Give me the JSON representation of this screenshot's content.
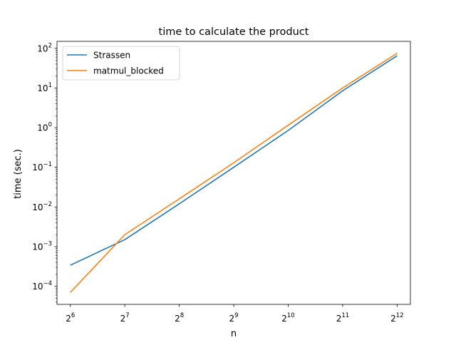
{
  "chart_data": {
    "type": "line",
    "title": "time to calculate the product",
    "xlabel": "n",
    "ylabel": "time (sec.)",
    "x_scale": "log2",
    "y_scale": "log10",
    "x": [
      64,
      128,
      256,
      512,
      1024,
      2048,
      4096
    ],
    "xticks": [
      {
        "value": 64,
        "base": "2",
        "exp": "6"
      },
      {
        "value": 128,
        "base": "2",
        "exp": "7"
      },
      {
        "value": 256,
        "base": "2",
        "exp": "8"
      },
      {
        "value": 512,
        "base": "2",
        "exp": "9"
      },
      {
        "value": 1024,
        "base": "2",
        "exp": "10"
      },
      {
        "value": 2048,
        "base": "2",
        "exp": "11"
      },
      {
        "value": 4096,
        "base": "2",
        "exp": "12"
      }
    ],
    "yticks": [
      {
        "value": 0.0001,
        "base": "10",
        "exp": "−4"
      },
      {
        "value": 0.001,
        "base": "10",
        "exp": "−3"
      },
      {
        "value": 0.01,
        "base": "10",
        "exp": "−2"
      },
      {
        "value": 0.1,
        "base": "10",
        "exp": "−1"
      },
      {
        "value": 1,
        "base": "10",
        "exp": "0"
      },
      {
        "value": 10,
        "base": "10",
        "exp": "1"
      },
      {
        "value": 100,
        "base": "10",
        "exp": "2"
      }
    ],
    "xlim": [
      54,
      4850
    ],
    "ylim": [
      3.5e-05,
      150
    ],
    "grid": false,
    "legend_position": "top-left",
    "series": [
      {
        "name": "Strassen",
        "color": "#1f77b4",
        "values": [
          0.00034,
          0.0015,
          0.012,
          0.1,
          0.85,
          8.5,
          65
        ]
      },
      {
        "name": "matmul_blocked",
        "color": "#ff7f0e",
        "values": [
          7e-05,
          0.002,
          0.016,
          0.13,
          1.15,
          10,
          75
        ]
      }
    ]
  }
}
